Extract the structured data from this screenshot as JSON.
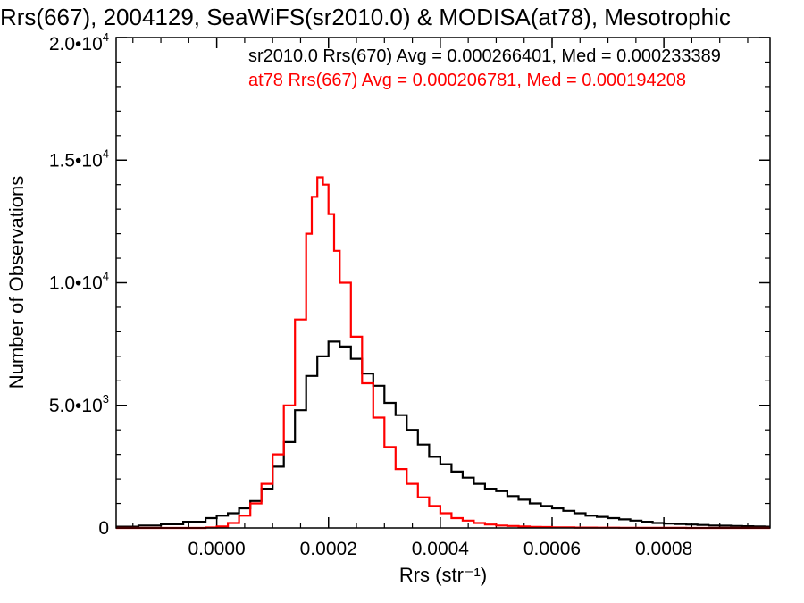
{
  "chart_data": {
    "type": "line",
    "title": "Rrs(667), 2004129, SeaWiFS(sr2010.0) & MODISA(at78), Mesotrophic",
    "xlabel": "Rrs (str⁻¹)",
    "ylabel": "Number of Observations",
    "xlim": [
      -0.00018,
      0.00099
    ],
    "ylim": [
      0,
      20000
    ],
    "x_ticks": [
      {
        "value": 0.0,
        "label": "0.0000"
      },
      {
        "value": 0.0002,
        "label": "0.0002"
      },
      {
        "value": 0.0004,
        "label": "0.0004"
      },
      {
        "value": 0.0006,
        "label": "0.0006"
      },
      {
        "value": 0.0008,
        "label": "0.0008"
      }
    ],
    "y_ticks": [
      {
        "value": 0,
        "base": "0",
        "exp": ""
      },
      {
        "value": 5000,
        "base": "5.0•10",
        "exp": "3"
      },
      {
        "value": 10000,
        "base": "1.0•10",
        "exp": "4"
      },
      {
        "value": 15000,
        "base": "1.5•10",
        "exp": "4"
      },
      {
        "value": 20000,
        "base": "2.0•10",
        "exp": "4"
      }
    ],
    "grid": false,
    "legend_position": "top-right",
    "series": [
      {
        "name": "sr2010.0 Rrs(670) Avg = 0.000266401, Med = 0.000233389",
        "color": "#000000",
        "x": [
          -0.00018,
          -0.00014,
          -0.0001,
          -6e-05,
          -2e-05,
          0.0,
          2e-05,
          4e-05,
          6e-05,
          8e-05,
          0.0001,
          0.00012,
          0.00014,
          0.00016,
          0.00018,
          0.0002,
          0.00022,
          0.00024,
          0.00026,
          0.00028,
          0.0003,
          0.00032,
          0.00034,
          0.00036,
          0.00038,
          0.0004,
          0.00042,
          0.00044,
          0.00046,
          0.00048,
          0.0005,
          0.00052,
          0.00054,
          0.00056,
          0.00058,
          0.0006,
          0.00062,
          0.00064,
          0.00066,
          0.00068,
          0.0007,
          0.00072,
          0.00074,
          0.00076,
          0.00078,
          0.0008,
          0.00082,
          0.00084,
          0.00086,
          0.00088,
          0.0009,
          0.00092,
          0.00094,
          0.00096,
          0.00098
        ],
        "values": [
          50,
          100,
          150,
          250,
          400,
          500,
          600,
          800,
          1100,
          1600,
          2500,
          3500,
          4800,
          6200,
          7000,
          7600,
          7400,
          6900,
          6300,
          5800,
          5100,
          4600,
          4000,
          3400,
          2900,
          2600,
          2300,
          2050,
          1800,
          1600,
          1500,
          1300,
          1150,
          1000,
          900,
          800,
          700,
          600,
          500,
          450,
          400,
          350,
          300,
          250,
          200,
          180,
          160,
          140,
          120,
          100,
          90,
          80,
          70,
          60,
          50
        ]
      },
      {
        "name": "at78 Rrs(667) Avg = 0.000206781, Med = 0.000194208",
        "color": "#ff0000",
        "x": [
          -0.00018,
          -0.00014,
          -0.0001,
          -6e-05,
          -2e-05,
          0.0,
          2e-05,
          4e-05,
          6e-05,
          8e-05,
          0.0001,
          0.00012,
          0.00014,
          0.00016,
          0.00017,
          0.00018,
          0.00019,
          0.0002,
          0.00021,
          0.00022,
          0.00024,
          0.00026,
          0.00028,
          0.0003,
          0.00032,
          0.00034,
          0.00036,
          0.00038,
          0.0004,
          0.00042,
          0.00044,
          0.00046,
          0.00048,
          0.0005,
          0.00052,
          0.00054,
          0.00056,
          0.00058,
          0.0006,
          0.00064,
          0.00068,
          0.00072,
          0.00076,
          0.0008,
          0.00084,
          0.00088,
          0.00092,
          0.00096,
          0.00098
        ],
        "values": [
          0,
          0,
          0,
          0,
          20,
          60,
          200,
          500,
          1000,
          1800,
          3000,
          5000,
          8500,
          12000,
          13500,
          14300,
          14000,
          12800,
          11300,
          10000,
          7800,
          5900,
          4500,
          3300,
          2400,
          1800,
          1250,
          900,
          600,
          400,
          300,
          200,
          140,
          100,
          80,
          60,
          45,
          35,
          25,
          15,
          10,
          6,
          4,
          2,
          1,
          1,
          0,
          0,
          0
        ]
      }
    ]
  }
}
